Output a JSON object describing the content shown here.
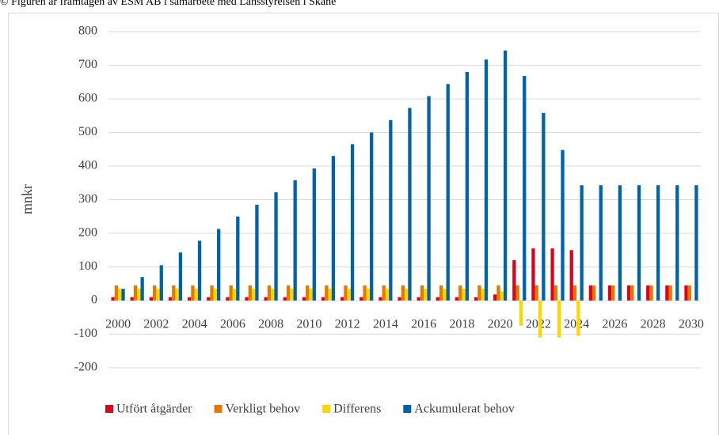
{
  "chart_data": {
    "type": "bar",
    "title": "© Figuren är framtagen av ESM AB i samarbete med Länsstyrelsen i Skåne",
    "y_label": "mnkr",
    "categories": [
      "2000",
      null,
      "2002",
      null,
      "2004",
      null,
      "2006",
      null,
      "2008",
      null,
      "2010",
      null,
      "2012",
      null,
      "2014",
      null,
      "2016",
      null,
      "2018",
      null,
      "2020",
      null,
      "2022",
      null,
      "2024",
      null,
      "2026",
      null,
      "2028",
      null,
      "2030"
    ],
    "series": [
      {
        "name": "Utfört åtgärder",
        "color": "#e3001b",
        "values": [
          10,
          10,
          10,
          10,
          10,
          10,
          10,
          10,
          10,
          10,
          10,
          10,
          10,
          10,
          10,
          10,
          10,
          10,
          10,
          10,
          18,
          120,
          155,
          155,
          150,
          45,
          45,
          45,
          45,
          45,
          45
        ]
      },
      {
        "name": "Verkligt behov",
        "color": "#e07b00",
        "values": [
          45,
          45,
          45,
          45,
          45,
          45,
          45,
          45,
          45,
          45,
          45,
          45,
          45,
          45,
          45,
          45,
          45,
          45,
          45,
          45,
          45,
          45,
          45,
          45,
          45,
          45,
          45,
          45,
          45,
          45,
          45
        ]
      },
      {
        "name": "Differens",
        "color": "#ffd500",
        "values": [
          35,
          35,
          35,
          35,
          35,
          35,
          35,
          35,
          35,
          35,
          35,
          35,
          35,
          35,
          35,
          35,
          35,
          35,
          35,
          35,
          27,
          -75,
          -110,
          -110,
          -105,
          0,
          0,
          0,
          0,
          0,
          0
        ]
      },
      {
        "name": "Ackumulerat behov",
        "color": "#0063a9",
        "values": [
          35,
          70,
          105,
          143,
          178,
          213,
          250,
          285,
          322,
          358,
          393,
          430,
          465,
          500,
          537,
          573,
          608,
          644,
          680,
          717,
          744,
          668,
          558,
          448,
          343,
          343,
          343,
          343,
          343,
          343,
          343
        ]
      }
    ],
    "ylim": [
      -200,
      800
    ],
    "yticks": [
      -200,
      -100,
      0,
      100,
      200,
      300,
      400,
      500,
      600,
      700,
      800
    ],
    "grid": true
  }
}
